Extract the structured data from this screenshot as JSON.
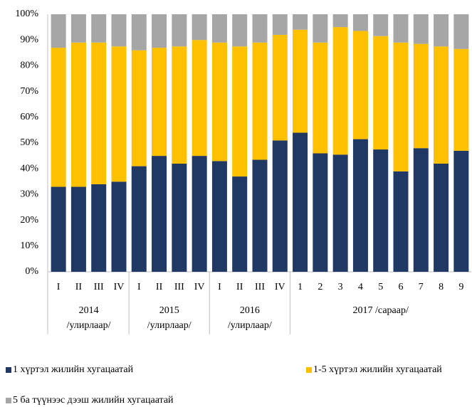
{
  "chart_data": {
    "type": "stacked_bar",
    "groups": [
      {
        "label": "2014",
        "sublabel": "/улирлаар/",
        "categories": [
          "I",
          "II",
          "III",
          "IV"
        ]
      },
      {
        "label": "2015",
        "sublabel": "/улирлаар/",
        "categories": [
          "I",
          "II",
          "III",
          "IV"
        ]
      },
      {
        "label": "2016",
        "sublabel": "/улирлаар/",
        "categories": [
          "I",
          "II",
          "III",
          "IV"
        ]
      },
      {
        "label": "2017 /сараар/",
        "categories": [
          "1",
          "2",
          "3",
          "4",
          "5",
          "6",
          "7",
          "8",
          "9"
        ]
      }
    ],
    "series": [
      {
        "name": "1 хүртэл жилийн хугацаатай",
        "color": "#1f3864",
        "values": [
          33,
          33,
          34,
          35,
          41,
          45,
          42,
          45,
          43,
          37,
          43.5,
          51,
          54,
          46,
          45.5,
          51.5,
          47.5,
          39,
          48,
          42,
          47
        ]
      },
      {
        "name": "1-5 хүртэл жилийн хугацаатай",
        "color": "#ffc000",
        "values": [
          54,
          56,
          55,
          52.5,
          45,
          42,
          45.5,
          45,
          46,
          50.5,
          45.5,
          41,
          40,
          43,
          49.5,
          42,
          44,
          50,
          40.5,
          45.5,
          39.5
        ]
      },
      {
        "name": "5 ба түүнээс дээш жилийн хугацаатай",
        "color": "#a6a6a6",
        "values": [
          13,
          11,
          11,
          12.5,
          14,
          13,
          12.5,
          10,
          11,
          12.5,
          11,
          8,
          6,
          11,
          5,
          6.5,
          8.5,
          11,
          11.5,
          12.5,
          13.5
        ]
      }
    ],
    "ylim": [
      0,
      100
    ],
    "yticks": [
      {
        "value": 0,
        "label": "0%"
      },
      {
        "value": 10,
        "label": "10%"
      },
      {
        "value": 20,
        "label": "20%"
      },
      {
        "value": 30,
        "label": "30%"
      },
      {
        "value": 40,
        "label": "40%"
      },
      {
        "value": 50,
        "label": "50%"
      },
      {
        "value": 60,
        "label": "60%"
      },
      {
        "value": 70,
        "label": "70%"
      },
      {
        "value": 80,
        "label": "80%"
      },
      {
        "value": 90,
        "label": "90%"
      },
      {
        "value": 100,
        "label": "100%"
      }
    ]
  }
}
